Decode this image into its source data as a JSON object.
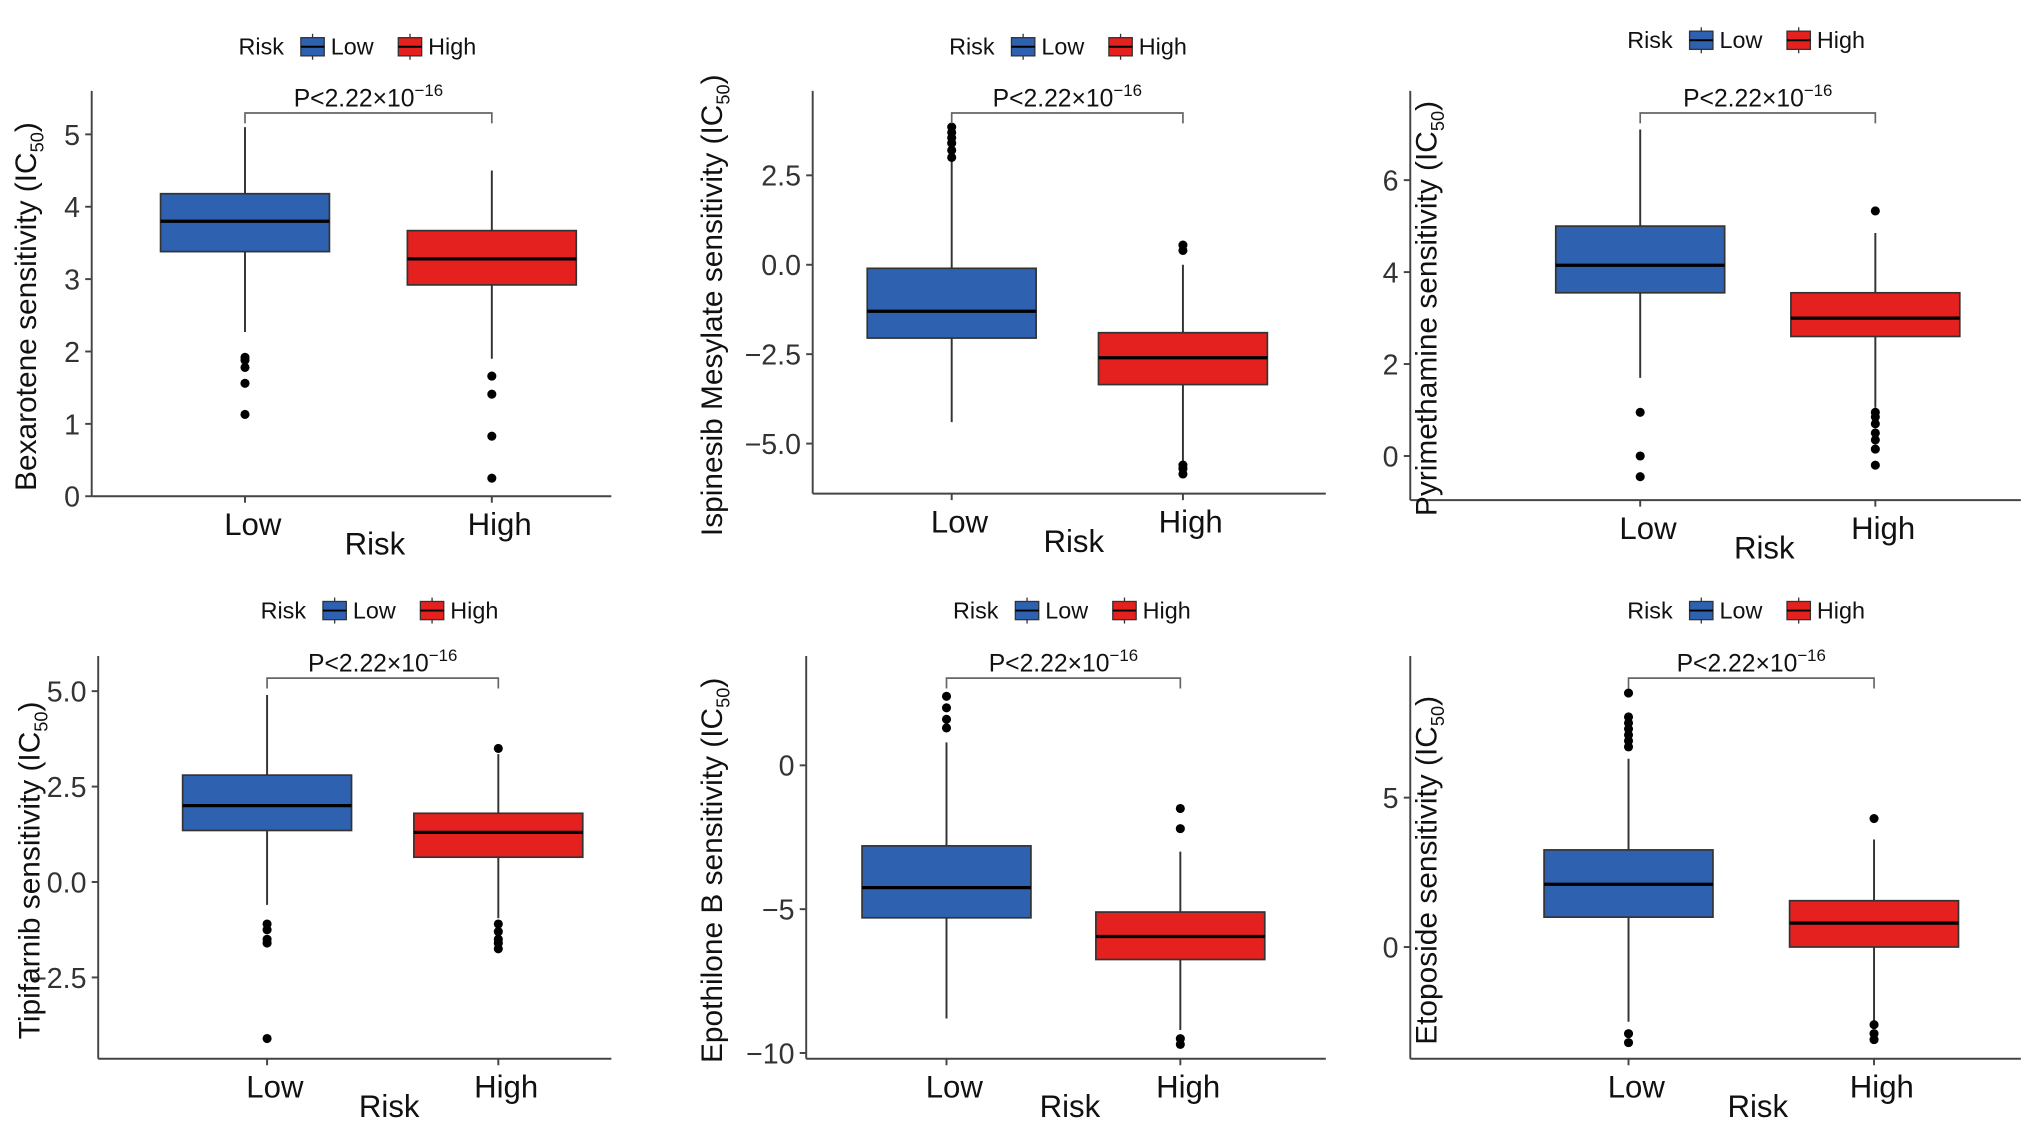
{
  "colors": {
    "Low": "#2e62b0",
    "High": "#e5211f",
    "outlier": "#000000",
    "axis": "#444444"
  },
  "chart_data": [
    {
      "type": "box",
      "title": "",
      "ylabel": "Bexarotene sensitivity (IC",
      "ylabel_sub": "50",
      "ylabel_end": ")",
      "xlabel": "Risk",
      "legend": {
        "title": "Risk",
        "entries": [
          "Low",
          "High"
        ],
        "placement": "top"
      },
      "categories": [
        "Low",
        "High"
      ],
      "ylim": [
        0,
        5.6
      ],
      "yticks": [
        0,
        1,
        2,
        3,
        4,
        5
      ],
      "ytick_labels": [
        "0",
        "1",
        "2",
        "3",
        "4",
        "5"
      ],
      "pvalue": "P<2.22×10",
      "pvalue_exp": "−16",
      "boxes": [
        {
          "group": "Low",
          "q1": 3.38,
          "median": 3.8,
          "q3": 4.18,
          "whisker_low": 2.27,
          "whisker_high": 5.1,
          "outliers": [
            1.92,
            1.88,
            1.78,
            1.56,
            1.13
          ]
        },
        {
          "group": "High",
          "q1": 2.92,
          "median": 3.28,
          "q3": 3.67,
          "whisker_low": 1.9,
          "whisker_high": 4.5,
          "outliers": [
            1.66,
            1.41,
            0.83,
            0.25
          ]
        }
      ]
    },
    {
      "type": "box",
      "title": "",
      "ylabel": "Ispinesib Mesylate sensitivity (IC",
      "ylabel_sub": "50",
      "ylabel_end": ")",
      "xlabel": "Risk",
      "legend": {
        "title": "Risk",
        "entries": [
          "Low",
          "High"
        ],
        "placement": "top"
      },
      "categories": [
        "Low",
        "High"
      ],
      "ylim": [
        -6.4,
        4.86
      ],
      "yticks": [
        -5,
        -2.5,
        0,
        2.5
      ],
      "ytick_labels": [
        "−5.0",
        "−2.5",
        "0.0",
        "2.5"
      ],
      "pvalue": "P<2.22×10",
      "pvalue_exp": "−16",
      "boxes": [
        {
          "group": "Low",
          "q1": -2.05,
          "median": -1.3,
          "q3": -0.1,
          "whisker_low": -4.4,
          "whisker_high": 2.95,
          "outliers": [
            3.0,
            3.2,
            3.4,
            3.55,
            3.7,
            3.85
          ]
        },
        {
          "group": "High",
          "q1": -3.35,
          "median": -2.6,
          "q3": -1.9,
          "whisker_low": -5.5,
          "whisker_high": 0.0,
          "outliers": [
            0.4,
            0.55,
            -5.6,
            -5.7,
            -5.85
          ]
        }
      ]
    },
    {
      "type": "box",
      "title": "",
      "ylabel": "Pyrimethamine sensitivity (IC",
      "ylabel_sub": "50",
      "ylabel_end": ")",
      "xlabel": "Risk",
      "legend": {
        "title": "Risk",
        "entries": [
          "Low",
          "High"
        ],
        "placement": "top"
      },
      "categories": [
        "Low",
        "High"
      ],
      "ylim": [
        -0.96,
        7.94
      ],
      "yticks": [
        0,
        2,
        4,
        6
      ],
      "ytick_labels": [
        "0",
        "2",
        "4",
        "6"
      ],
      "pvalue": "P<2.22×10",
      "pvalue_exp": "−16",
      "boxes": [
        {
          "group": "Low",
          "q1": 3.55,
          "median": 4.15,
          "q3": 5.0,
          "whisker_low": 1.7,
          "whisker_high": 7.1,
          "outliers": [
            0.95,
            0.0,
            -0.45
          ]
        },
        {
          "group": "High",
          "q1": 2.6,
          "median": 3.0,
          "q3": 3.55,
          "whisker_low": 1.05,
          "whisker_high": 4.85,
          "outliers": [
            5.33,
            0.95,
            0.85,
            0.7,
            0.5,
            0.35,
            0.15,
            -0.2
          ]
        }
      ]
    },
    {
      "type": "box",
      "title": "",
      "ylabel": "Tipifarnib sensitivity (IC",
      "ylabel_sub": "50",
      "ylabel_end": ")",
      "xlabel": "Risk",
      "legend": {
        "title": "Risk",
        "entries": [
          "Low",
          "High"
        ],
        "placement": "top"
      },
      "categories": [
        "Low",
        "High"
      ],
      "ylim": [
        -4.63,
        5.92
      ],
      "yticks": [
        -2.5,
        0,
        2.5,
        5
      ],
      "ytick_labels": [
        "−2.5",
        "0.0",
        "2.5",
        "5.0"
      ],
      "pvalue": "P<2.22×10",
      "pvalue_exp": "−16",
      "boxes": [
        {
          "group": "Low",
          "q1": 1.35,
          "median": 2.0,
          "q3": 2.8,
          "whisker_low": -0.6,
          "whisker_high": 4.9,
          "outliers": [
            -1.1,
            -1.25,
            -1.5,
            -1.6,
            -4.1
          ]
        },
        {
          "group": "High",
          "q1": 0.65,
          "median": 1.3,
          "q3": 1.8,
          "whisker_low": -0.95,
          "whisker_high": 3.35,
          "outliers": [
            3.5,
            -1.1,
            -1.3,
            -1.5,
            -1.6,
            -1.75
          ]
        }
      ]
    },
    {
      "type": "box",
      "title": "",
      "ylabel": "Epothilone B sensitivity (IC",
      "ylabel_sub": "50",
      "ylabel_end": ")",
      "xlabel": "Risk",
      "legend": {
        "title": "Risk",
        "entries": [
          "Low",
          "High"
        ],
        "placement": "top"
      },
      "categories": [
        "Low",
        "High"
      ],
      "ylim": [
        -10.2,
        3.8
      ],
      "yticks": [
        -10,
        -5,
        0
      ],
      "ytick_labels": [
        "−10",
        "−5",
        "0"
      ],
      "pvalue": "P<2.22×10",
      "pvalue_exp": "−16",
      "boxes": [
        {
          "group": "Low",
          "q1": -5.3,
          "median": -4.25,
          "q3": -2.8,
          "whisker_low": -8.8,
          "whisker_high": 0.8,
          "outliers": [
            1.3,
            1.6,
            2.0,
            2.4
          ]
        },
        {
          "group": "High",
          "q1": -6.75,
          "median": -5.95,
          "q3": -5.1,
          "whisker_low": -9.2,
          "whisker_high": -3.0,
          "outliers": [
            -1.5,
            -2.2,
            -9.5,
            -9.7
          ]
        }
      ]
    },
    {
      "type": "box",
      "title": "",
      "ylabel": "Etoposide sensitivity (IC",
      "ylabel_sub": "50",
      "ylabel_end": ")",
      "xlabel": "Risk",
      "legend": {
        "title": "Risk",
        "entries": [
          "Low",
          "High"
        ],
        "placement": "top"
      },
      "categories": [
        "Low",
        "High"
      ],
      "ylim": [
        -3.74,
        9.74
      ],
      "yticks": [
        0,
        5
      ],
      "ytick_labels": [
        "0",
        "5"
      ],
      "pvalue": "P<2.22×10",
      "pvalue_exp": "−16",
      "boxes": [
        {
          "group": "Low",
          "q1": 1.0,
          "median": 2.1,
          "q3": 3.25,
          "whisker_low": -2.5,
          "whisker_high": 6.3,
          "outliers": [
            6.7,
            6.9,
            7.1,
            7.3,
            7.5,
            7.7,
            8.5,
            -2.9,
            -3.2
          ]
        },
        {
          "group": "High",
          "q1": 0.0,
          "median": 0.8,
          "q3": 1.55,
          "whisker_low": -2.6,
          "whisker_high": 3.6,
          "outliers": [
            4.3,
            -2.6,
            -2.9,
            -3.1
          ]
        }
      ]
    }
  ]
}
